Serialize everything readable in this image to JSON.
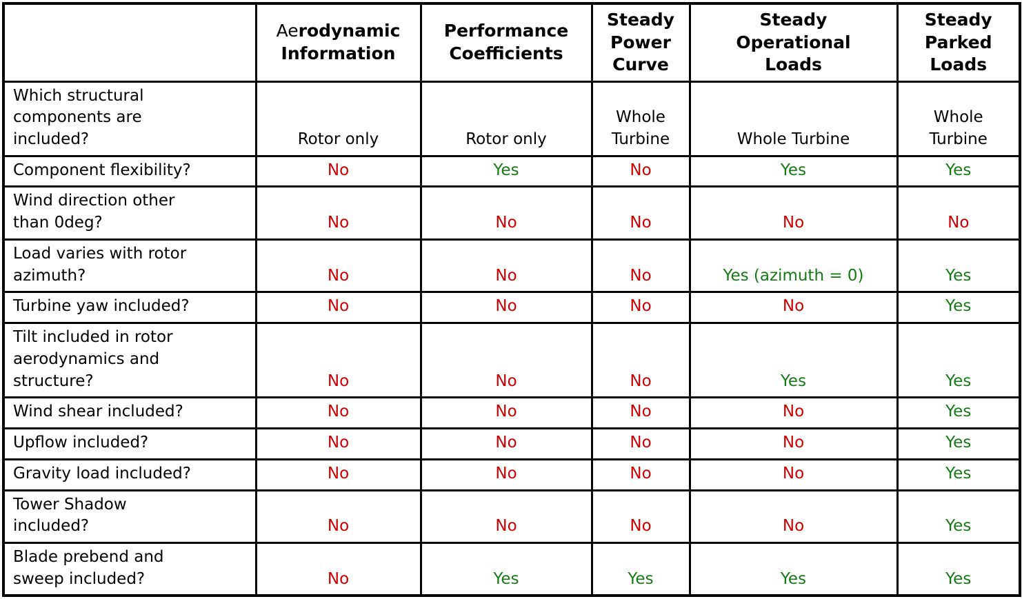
{
  "colors": {
    "yes": "#157a15",
    "no": "#cc0000",
    "border": "#000000",
    "background": "#ffffff"
  },
  "table": {
    "columns": [
      {
        "label": ""
      },
      {
        "prefix": "Ae",
        "bold_rest": "rodynamic\nInformation"
      },
      {
        "label": "Performance\nCoefficients"
      },
      {
        "label": "Steady\nPower\nCurve"
      },
      {
        "label": "Steady\nOperational\nLoads"
      },
      {
        "label": "Steady\nParked\nLoads"
      }
    ],
    "rows": [
      {
        "question": "Which structural\ncomponents are\nincluded?",
        "cells": [
          {
            "text": "Rotor only",
            "kind": "plain"
          },
          {
            "text": "Rotor only",
            "kind": "plain"
          },
          {
            "text": "Whole\nTurbine",
            "kind": "plain"
          },
          {
            "text": "Whole Turbine",
            "kind": "plain"
          },
          {
            "text": "Whole\nTurbine",
            "kind": "plain"
          }
        ]
      },
      {
        "question": "Component flexibility?",
        "cells": [
          {
            "text": "No",
            "kind": "no"
          },
          {
            "text": "Yes",
            "kind": "yes"
          },
          {
            "text": "No",
            "kind": "no"
          },
          {
            "text": "Yes",
            "kind": "yes"
          },
          {
            "text": "Yes",
            "kind": "yes"
          }
        ]
      },
      {
        "question": "Wind direction other\nthan 0deg?",
        "cells": [
          {
            "text": "No",
            "kind": "no"
          },
          {
            "text": "No",
            "kind": "no"
          },
          {
            "text": "No",
            "kind": "no"
          },
          {
            "text": "No",
            "kind": "no"
          },
          {
            "text": "No",
            "kind": "no"
          }
        ]
      },
      {
        "question": "Load varies with rotor\nazimuth?",
        "cells": [
          {
            "text": "No",
            "kind": "no"
          },
          {
            "text": "No",
            "kind": "no"
          },
          {
            "text": "No",
            "kind": "no"
          },
          {
            "text": "Yes (azimuth = 0)",
            "kind": "yes"
          },
          {
            "text": "Yes",
            "kind": "yes"
          }
        ]
      },
      {
        "question": "Turbine yaw included?",
        "cells": [
          {
            "text": "No",
            "kind": "no"
          },
          {
            "text": "No",
            "kind": "no"
          },
          {
            "text": "No",
            "kind": "no"
          },
          {
            "text": "No",
            "kind": "no"
          },
          {
            "text": "Yes",
            "kind": "yes"
          }
        ]
      },
      {
        "question": "Tilt included in rotor\naerodynamics and\nstructure?",
        "cells": [
          {
            "text": "No",
            "kind": "no"
          },
          {
            "text": "No",
            "kind": "no"
          },
          {
            "text": "No",
            "kind": "no"
          },
          {
            "text": "Yes",
            "kind": "yes"
          },
          {
            "text": "Yes",
            "kind": "yes"
          }
        ]
      },
      {
        "question": "Wind shear included?",
        "cells": [
          {
            "text": "No",
            "kind": "no"
          },
          {
            "text": "No",
            "kind": "no"
          },
          {
            "text": "No",
            "kind": "no"
          },
          {
            "text": "No",
            "kind": "no"
          },
          {
            "text": "Yes",
            "kind": "yes"
          }
        ]
      },
      {
        "question": "Upflow included?",
        "cells": [
          {
            "text": "No",
            "kind": "no"
          },
          {
            "text": "No",
            "kind": "no"
          },
          {
            "text": "No",
            "kind": "no"
          },
          {
            "text": "No",
            "kind": "no"
          },
          {
            "text": "Yes",
            "kind": "yes"
          }
        ]
      },
      {
        "question": "Gravity load included?",
        "cells": [
          {
            "text": "No",
            "kind": "no"
          },
          {
            "text": "No",
            "kind": "no"
          },
          {
            "text": "No",
            "kind": "no"
          },
          {
            "text": "No",
            "kind": "no"
          },
          {
            "text": "Yes",
            "kind": "yes"
          }
        ]
      },
      {
        "question": "Tower Shadow\nincluded?",
        "cells": [
          {
            "text": "No",
            "kind": "no"
          },
          {
            "text": "No",
            "kind": "no"
          },
          {
            "text": "No",
            "kind": "no"
          },
          {
            "text": "No",
            "kind": "no"
          },
          {
            "text": "Yes",
            "kind": "yes"
          }
        ]
      },
      {
        "question": "Blade prebend and\nsweep included?",
        "cells": [
          {
            "text": "No",
            "kind": "no"
          },
          {
            "text": "Yes",
            "kind": "yes"
          },
          {
            "text": "Yes",
            "kind": "yes"
          },
          {
            "text": "Yes",
            "kind": "yes"
          },
          {
            "text": "Yes",
            "kind": "yes"
          }
        ]
      }
    ]
  }
}
